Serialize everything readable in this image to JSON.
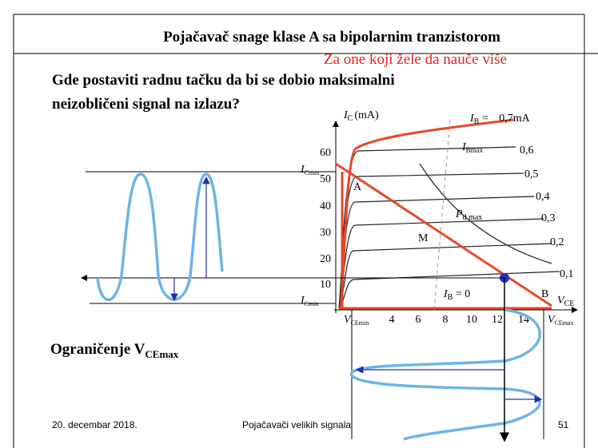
{
  "header": {
    "title": "Pojačavač snage klase A sa bipolarnim tranzistorom"
  },
  "note": "Za one koji žele da nauče više",
  "question": [
    "Gde postaviti radnu tačku da bi se dobio maksimalni",
    "neizobličeni signal na izlazu?"
  ],
  "caption": {
    "main": "Ograničenje V",
    "sub": "CEmax"
  },
  "diagram": {
    "y_axis": {
      "main": "I",
      "sub": "C",
      "unit": "(mA)"
    },
    "x_axis": {
      "main": "V",
      "sub": "CE"
    },
    "yticks": [
      "60",
      "50",
      "40",
      "30",
      "20",
      "10"
    ],
    "xticks": [
      "4",
      "6",
      "8",
      "10",
      "12",
      "14"
    ],
    "icmax": {
      "main": "I",
      "sub": "Cmax"
    },
    "icmin": {
      "main": "I",
      "sub": "Cmin"
    },
    "vcemin": {
      "main": "V",
      "sub": "CEmin"
    },
    "vcemax": {
      "main": "V",
      "sub": "CEmax"
    },
    "ib_top": {
      "main": "I",
      "sub": "B",
      "rest": " = ",
      "value": "0,7mA"
    },
    "ib_max": {
      "main": "I",
      "sub": "Bmax"
    },
    "ib_zero": {
      "main": "I",
      "sub": "B",
      "rest": " = 0"
    },
    "pd": {
      "main": "P",
      "sub": "d max"
    },
    "curve_labels": [
      "0,6",
      "0,5",
      "0,4",
      "0,3",
      "0,2",
      "0,1"
    ],
    "points": [
      "A",
      "M",
      "B"
    ]
  },
  "footer": {
    "date": "20. decembar 2018.",
    "center": "Pojačavači velikih signala",
    "page": "51"
  }
}
